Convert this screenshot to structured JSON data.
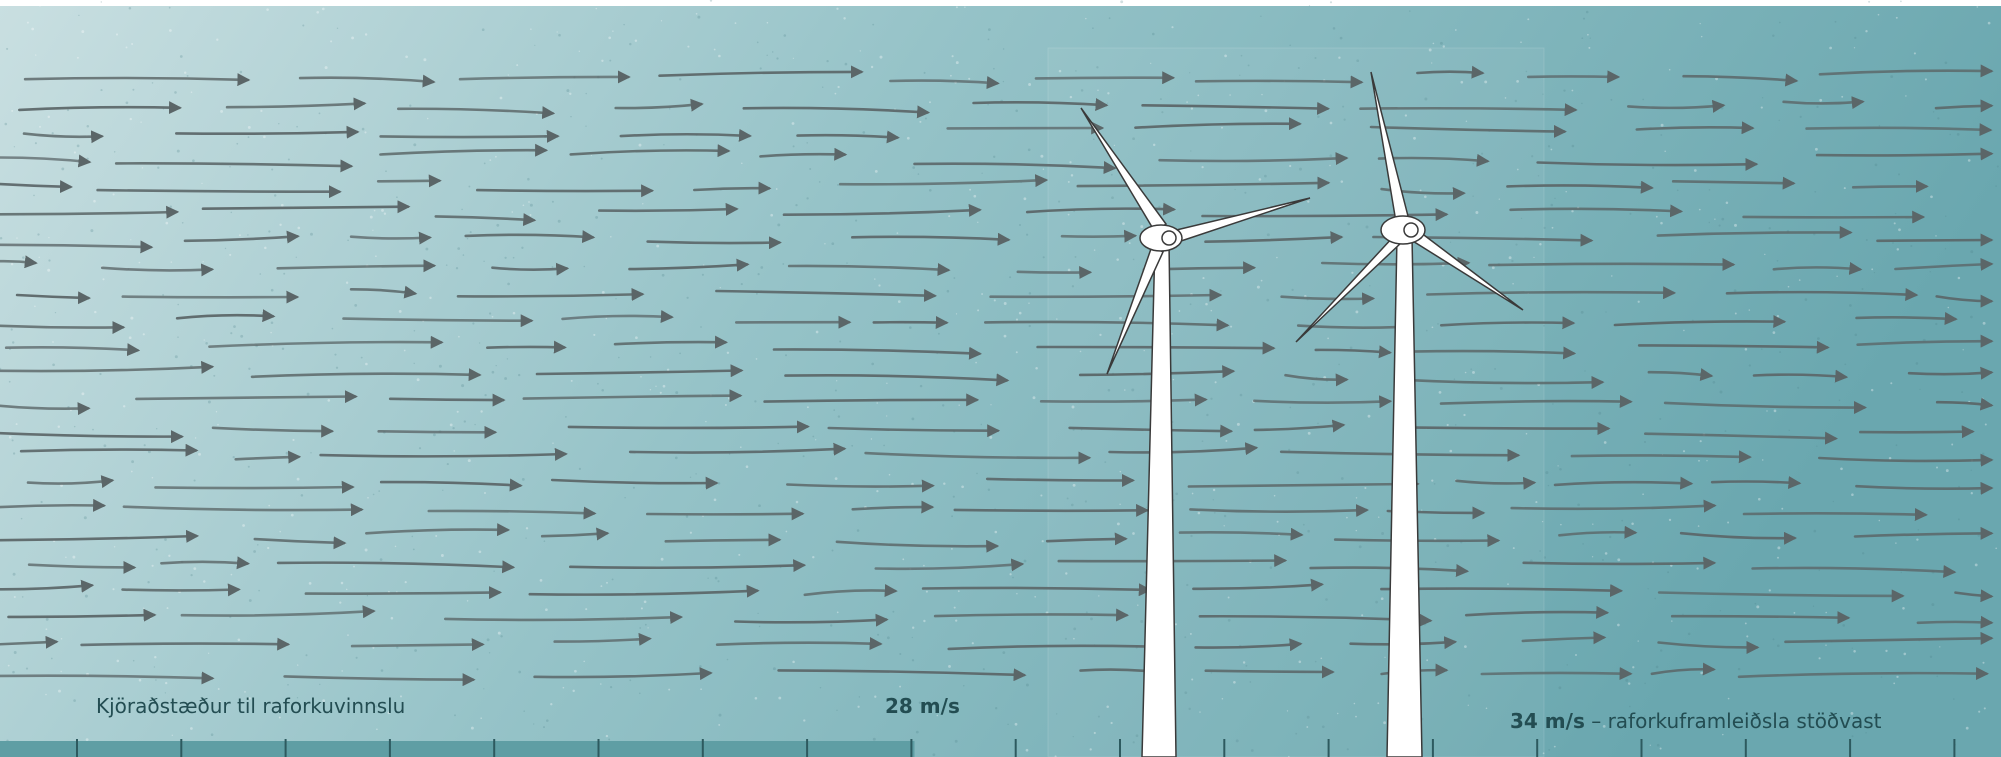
{
  "labels": {
    "optimal_range": "Kjöraðstæður til raforkuvinnslu",
    "rated_speed": "28 m/s",
    "cutout_speed": "34 m/s",
    "cutout_separator": "–",
    "cutout_text": "raforkuframleiðsla stöðvast"
  },
  "colors": {
    "sky_light": "#c9dfe1",
    "sky_dark": "#6aa7af",
    "arrow": "#5b6668",
    "scale_bar": "#5f9ea4",
    "tick": "#2d5a5f",
    "label_text": "#234d52",
    "turbine": "#ffffff",
    "turbine_outline": "#3a3a3a"
  },
  "scale": {
    "filled_fraction": 0.457,
    "tick_count": 19
  }
}
